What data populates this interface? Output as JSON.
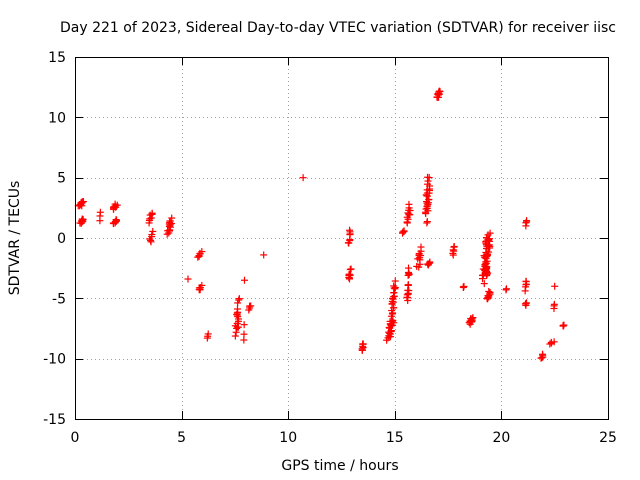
{
  "chart_data": {
    "type": "scatter",
    "title": "Day 221 of 2023, Sidereal Day-to-day VTEC variation (SDTVAR) for receiver iisc",
    "xlabel": "GPS time / hours",
    "ylabel": "SDTVAR / TECUs",
    "xlim": [
      0,
      25
    ],
    "ylim": [
      -15,
      15
    ],
    "xticks": [
      0,
      5,
      10,
      15,
      20,
      25
    ],
    "yticks": [
      -15,
      -10,
      -5,
      0,
      5,
      10,
      15
    ],
    "grid": true,
    "marker": "+",
    "color": "#ff0000",
    "series": [
      {
        "name": "SDTVAR",
        "clusters": [
          {
            "x0": 0.15,
            "x1": 0.45,
            "y0": 2.6,
            "y1": 3.1,
            "n": 12
          },
          {
            "x0": 0.2,
            "x1": 0.45,
            "y0": 1.2,
            "y1": 1.6,
            "n": 10
          },
          {
            "x0": 1.15,
            "x1": 1.2,
            "y0": 1.3,
            "y1": 2.2,
            "n": 3
          },
          {
            "x0": 1.75,
            "x1": 2.0,
            "y0": 2.3,
            "y1": 2.9,
            "n": 8
          },
          {
            "x0": 1.75,
            "x1": 2.0,
            "y0": 1.1,
            "y1": 1.6,
            "n": 8
          },
          {
            "x0": 3.45,
            "x1": 3.65,
            "y0": 1.2,
            "y1": 2.3,
            "n": 8
          },
          {
            "x0": 3.45,
            "x1": 3.7,
            "y0": -0.4,
            "y1": 0.6,
            "n": 6
          },
          {
            "x0": 4.3,
            "x1": 4.55,
            "y0": 0.2,
            "y1": 1.8,
            "n": 16
          },
          {
            "x0": 5.3,
            "x1": 5.3,
            "y0": -3.4,
            "y1": -3.4,
            "n": 1
          },
          {
            "x0": 5.75,
            "x1": 5.95,
            "y0": -1.7,
            "y1": -1.1,
            "n": 6
          },
          {
            "x0": 5.75,
            "x1": 5.95,
            "y0": -4.4,
            "y1": -3.9,
            "n": 6
          },
          {
            "x0": 6.2,
            "x1": 6.25,
            "y0": -8.3,
            "y1": -7.9,
            "n": 3
          },
          {
            "x0": 7.5,
            "x1": 7.75,
            "y0": -8.3,
            "y1": -4.8,
            "n": 18
          },
          {
            "x0": 7.9,
            "x1": 7.95,
            "y0": -8.8,
            "y1": -7.1,
            "n": 3
          },
          {
            "x0": 7.95,
            "x1": 7.95,
            "y0": -3.5,
            "y1": -3.5,
            "n": 1
          },
          {
            "x0": 8.15,
            "x1": 8.25,
            "y0": -6.0,
            "y1": -5.5,
            "n": 4
          },
          {
            "x0": 8.85,
            "x1": 8.85,
            "y0": -1.4,
            "y1": -1.4,
            "n": 1
          },
          {
            "x0": 10.7,
            "x1": 10.7,
            "y0": 5.0,
            "y1": 5.0,
            "n": 1
          },
          {
            "x0": 12.8,
            "x1": 12.95,
            "y0": -0.7,
            "y1": 0.8,
            "n": 8
          },
          {
            "x0": 12.8,
            "x1": 12.95,
            "y0": -3.7,
            "y1": -2.5,
            "n": 10
          },
          {
            "x0": 13.45,
            "x1": 13.55,
            "y0": -9.6,
            "y1": -8.5,
            "n": 8
          },
          {
            "x0": 14.6,
            "x1": 15.0,
            "y0": -8.7,
            "y1": -6.2,
            "n": 26
          },
          {
            "x0": 14.85,
            "x1": 15.05,
            "y0": -6.3,
            "y1": -3.5,
            "n": 18
          },
          {
            "x0": 15.35,
            "x1": 15.45,
            "y0": 0.4,
            "y1": 0.6,
            "n": 4
          },
          {
            "x0": 15.55,
            "x1": 15.75,
            "y0": 1.2,
            "y1": 2.8,
            "n": 12
          },
          {
            "x0": 15.55,
            "x1": 15.7,
            "y0": -5.6,
            "y1": -2.4,
            "n": 16
          },
          {
            "x0": 16.0,
            "x1": 16.35,
            "y0": -2.5,
            "y1": -0.7,
            "n": 12
          },
          {
            "x0": 16.4,
            "x1": 16.65,
            "y0": 0.8,
            "y1": 5.7,
            "n": 28
          },
          {
            "x0": 16.5,
            "x1": 16.7,
            "y0": -2.3,
            "y1": -1.9,
            "n": 5
          },
          {
            "x0": 16.95,
            "x1": 17.15,
            "y0": 11.5,
            "y1": 12.4,
            "n": 10
          },
          {
            "x0": 17.7,
            "x1": 17.8,
            "y0": -1.5,
            "y1": -0.6,
            "n": 6
          },
          {
            "x0": 18.2,
            "x1": 18.25,
            "y0": -4.1,
            "y1": -4.0,
            "n": 3
          },
          {
            "x0": 18.45,
            "x1": 18.7,
            "y0": -7.2,
            "y1": -6.5,
            "n": 10
          },
          {
            "x0": 19.1,
            "x1": 19.5,
            "y0": -4.2,
            "y1": 0.6,
            "n": 60
          },
          {
            "x0": 19.3,
            "x1": 19.5,
            "y0": -5.2,
            "y1": -4.4,
            "n": 10
          },
          {
            "x0": 20.2,
            "x1": 20.25,
            "y0": -4.3,
            "y1": -4.2,
            "n": 2
          },
          {
            "x0": 21.1,
            "x1": 21.2,
            "y0": 1.0,
            "y1": 1.5,
            "n": 4
          },
          {
            "x0": 21.1,
            "x1": 21.2,
            "y0": -4.5,
            "y1": -3.4,
            "n": 6
          },
          {
            "x0": 21.1,
            "x1": 21.2,
            "y0": -5.6,
            "y1": -5.3,
            "n": 4
          },
          {
            "x0": 21.85,
            "x1": 22.0,
            "y0": -10.1,
            "y1": -9.6,
            "n": 5
          },
          {
            "x0": 22.25,
            "x1": 22.5,
            "y0": -8.8,
            "y1": -8.6,
            "n": 4
          },
          {
            "x0": 22.45,
            "x1": 22.5,
            "y0": -6.0,
            "y1": -5.4,
            "n": 3
          },
          {
            "x0": 22.5,
            "x1": 22.5,
            "y0": -4.0,
            "y1": -4.0,
            "n": 1
          },
          {
            "x0": 22.85,
            "x1": 22.95,
            "y0": -7.3,
            "y1": -7.2,
            "n": 3
          }
        ]
      }
    ]
  }
}
